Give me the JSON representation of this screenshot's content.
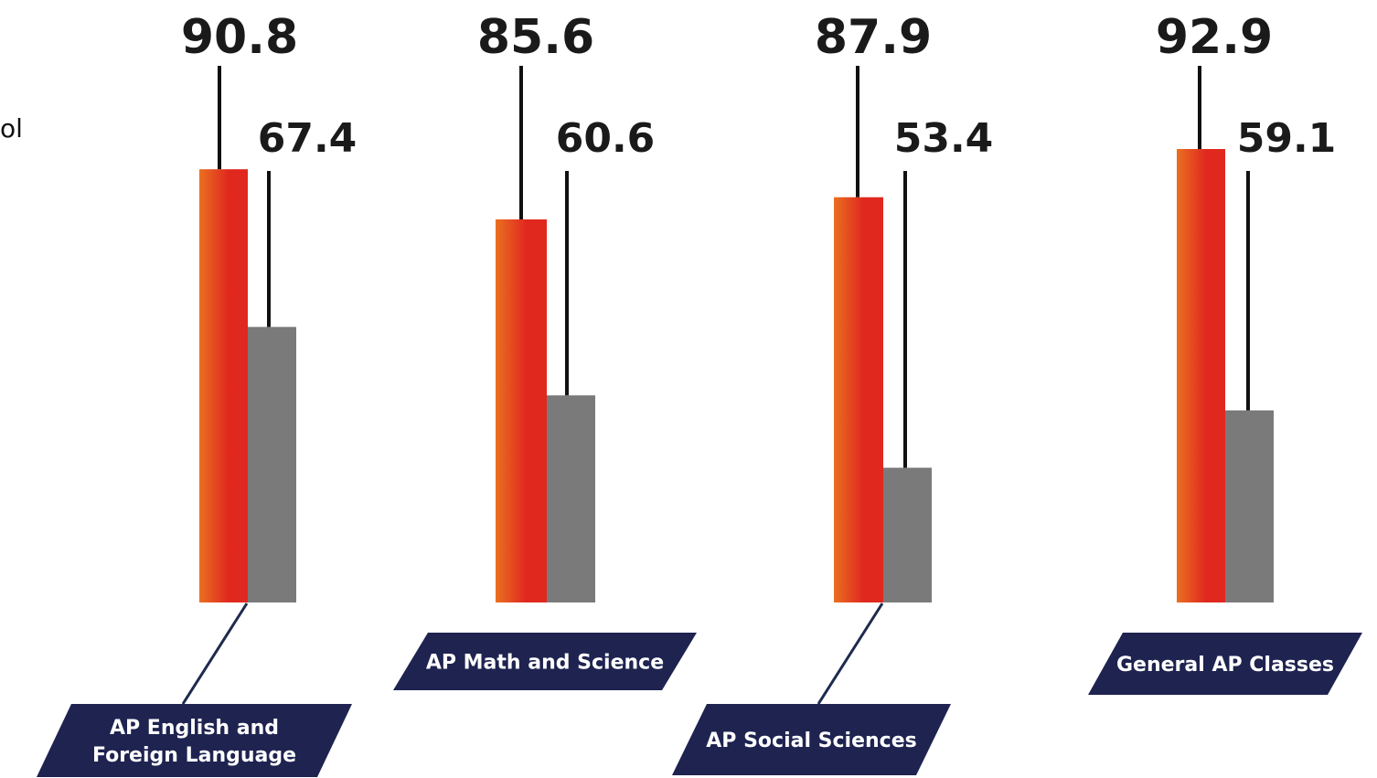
{
  "edge_text": "ol",
  "chart_data": {
    "type": "bar",
    "categories": [
      [
        "AP English and",
        "Foreign Language"
      ],
      [
        "AP Math and Science"
      ],
      [
        "AP Social Sciences"
      ],
      [
        "General AP Classes"
      ]
    ],
    "series": [
      {
        "values": [
          90.8,
          85.6,
          87.9,
          92.9
        ],
        "color": "#e0281f",
        "gradient_start": "#ea7020"
      },
      {
        "values": [
          67.4,
          60.6,
          53.4,
          59.1
        ],
        "color": "#7a7a7a"
      }
    ],
    "value_labels": [
      [
        "90.8",
        "85.6",
        "87.9",
        "92.9"
      ],
      [
        "67.4",
        "60.6",
        "53.4",
        "59.1"
      ]
    ],
    "label_banner_color": "#1e2350",
    "leader_line_color": "#1e2a4e"
  }
}
